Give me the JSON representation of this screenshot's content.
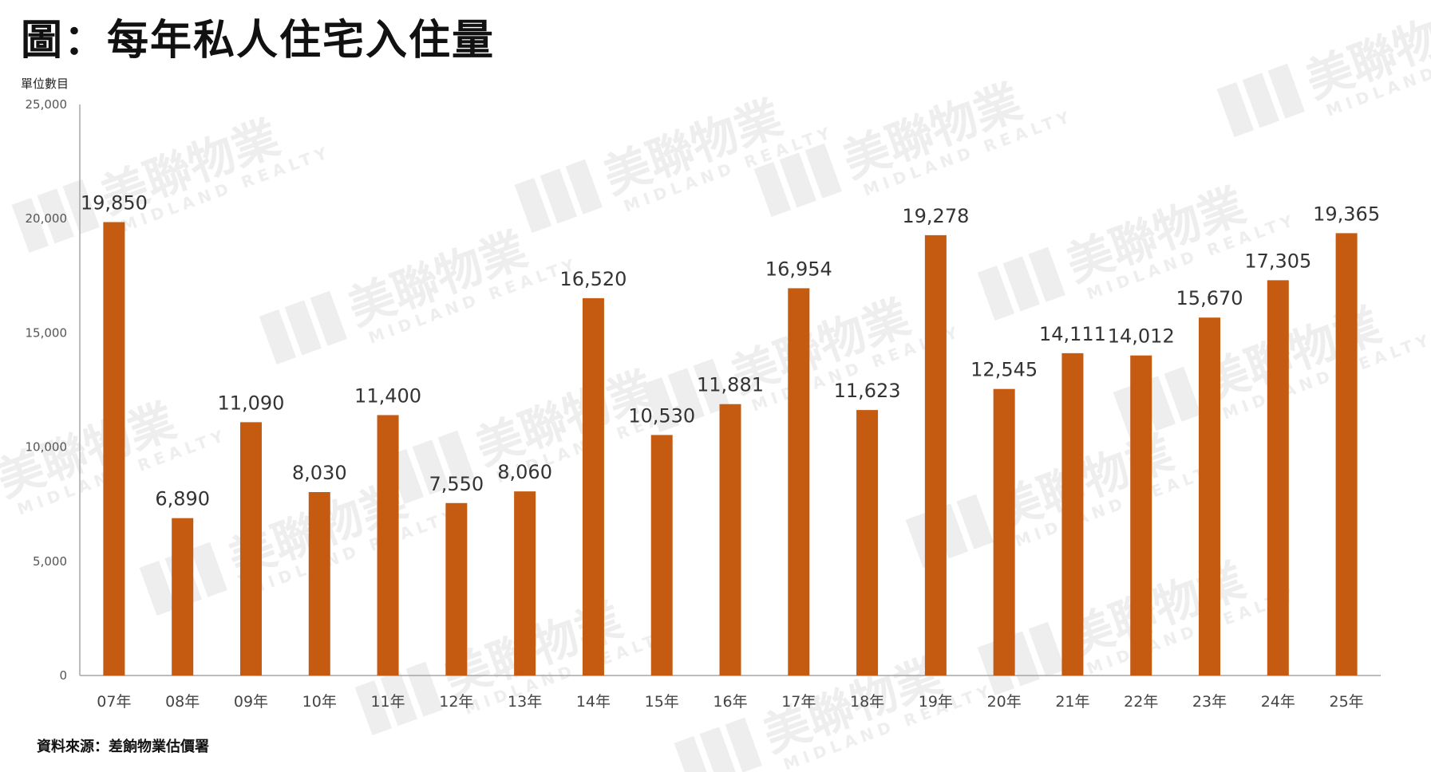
{
  "title": "圖：每年私人住宅入住量",
  "unit_label": "單位數目",
  "source_note": "資料來源：差餉物業估價署",
  "watermark": {
    "text": "美聯物業",
    "subtext": "MIDLAND REALTY",
    "color": "#eeeeee"
  },
  "colors": {
    "bar": "#c55a11",
    "axis": "#a6a6a6"
  },
  "chart_data": {
    "type": "bar",
    "title": "圖：每年私人住宅入住量",
    "xlabel": "",
    "ylabel": "單位數目",
    "ylim": [
      0,
      25000
    ],
    "yticks": [
      0,
      5000,
      10000,
      15000,
      20000,
      25000
    ],
    "ytick_labels": [
      "0",
      "5,000",
      "10,000",
      "15,000",
      "20,000",
      "25,000"
    ],
    "grid": false,
    "legend": "none",
    "categories": [
      "07年",
      "08年",
      "09年",
      "10年",
      "11年",
      "12年",
      "13年",
      "14年",
      "15年",
      "16年",
      "17年",
      "18年",
      "19年",
      "20年",
      "21年",
      "22年",
      "23年",
      "24年",
      "25年"
    ],
    "values": [
      19850,
      6890,
      11090,
      8030,
      11400,
      7550,
      8060,
      16520,
      10530,
      11881,
      16954,
      11623,
      19278,
      12545,
      14111,
      14012,
      15670,
      17305,
      19365
    ],
    "value_labels": [
      "19,850",
      "6,890",
      "11,090",
      "8,030",
      "11,400",
      "7,550",
      "8,060",
      "16,520",
      "10,530",
      "11,881",
      "16,954",
      "11,623",
      "19,278",
      "12,545",
      "14,111",
      "14,012",
      "15,670",
      "17,305",
      "19,365"
    ]
  }
}
